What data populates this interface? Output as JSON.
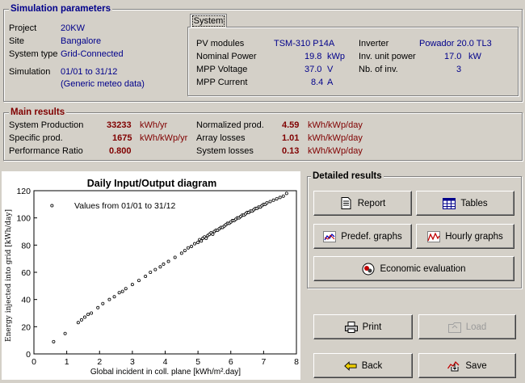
{
  "sim_params": {
    "title": "Simulation parameters",
    "project_label": "Project",
    "project_value": "20KW",
    "site_label": "Site",
    "site_value": "Bangalore",
    "system_type_label": "System type",
    "system_type_value": "Grid-Connected",
    "simulation_label": "Simulation",
    "simulation_value": "01/01 to 31/12",
    "meteo_note": "(Generic meteo data)",
    "tab_label": "System",
    "pv_modules_label": "PV modules",
    "pv_modules_value": "TSM-310 P14A",
    "nominal_power_label": "Nominal Power",
    "nominal_power_value": "19.8",
    "nominal_power_unit": "kWp",
    "mpp_voltage_label": "MPP Voltage",
    "mpp_voltage_value": "37.0",
    "mpp_voltage_unit": "V",
    "mpp_current_label": "MPP Current",
    "mpp_current_value": "8.4",
    "mpp_current_unit": "A",
    "inverter_label": "Inverter",
    "inverter_value": "Powador 20.0 TL3",
    "inv_unit_power_label": "Inv. unit power",
    "inv_unit_power_value": "17.0",
    "inv_unit_power_unit": "kW",
    "nb_inv_label": "Nb. of inv.",
    "nb_inv_value": "3"
  },
  "main_results": {
    "title": "Main results",
    "system_production_label": "System Production",
    "system_production_value": "33233",
    "system_production_unit": "kWh/yr",
    "specific_prod_label": "Specific prod.",
    "specific_prod_value": "1675",
    "specific_prod_unit": "kWh/kWp/yr",
    "performance_ratio_label": "Performance Ratio",
    "performance_ratio_value": "0.800",
    "normalized_prod_label": "Normalized prod.",
    "normalized_prod_value": "4.59",
    "normalized_prod_unit": "kWh/kWp/day",
    "array_losses_label": "Array losses",
    "array_losses_value": "1.01",
    "array_losses_unit": "kWh/kWp/day",
    "system_losses_label": "System losses",
    "system_losses_value": "0.13",
    "system_losses_unit": "kWh/kWp/day"
  },
  "detailed_results": {
    "title": "Detailed results",
    "report": "Report",
    "tables": "Tables",
    "predef_graphs": "Predef. graphs",
    "hourly_graphs": "Hourly graphs",
    "economic_evaluation": "Economic evaluation"
  },
  "actions": {
    "print": "Print",
    "load": "Load",
    "back": "Back",
    "save": "Save"
  },
  "icons": {
    "report": "report-icon",
    "tables": "table-icon",
    "predef": "line-graph-icon",
    "hourly": "hourly-graph-icon",
    "economic": "coin-icon",
    "print": "printer-icon",
    "load": "folder-icon",
    "back": "back-arrow-icon",
    "save": "save-icon"
  },
  "chart_data": {
    "type": "scatter",
    "title": "Daily Input/Output diagram",
    "annotation": "Values from 01/01 to 31/12",
    "xlabel": "Global incident in coll. plane [kWh/m².day]",
    "ylabel": "Energy injected into grid [kWh/day]",
    "xlim": [
      0,
      8
    ],
    "ylim": [
      0,
      120
    ],
    "xticks": [
      "0",
      "1",
      "2",
      "3",
      "4",
      "5",
      "6",
      "7",
      "8"
    ],
    "yticks": [
      "0",
      "20",
      "40",
      "60",
      "80",
      "100",
      "120"
    ],
    "points": [
      [
        0.6,
        9
      ],
      [
        0.95,
        15
      ],
      [
        1.35,
        23
      ],
      [
        1.45,
        25
      ],
      [
        1.55,
        27
      ],
      [
        1.65,
        29
      ],
      [
        1.75,
        30
      ],
      [
        1.95,
        34
      ],
      [
        2.1,
        37
      ],
      [
        2.3,
        40
      ],
      [
        2.45,
        42
      ],
      [
        2.6,
        45
      ],
      [
        2.7,
        46
      ],
      [
        2.8,
        48
      ],
      [
        3.0,
        51
      ],
      [
        3.2,
        54
      ],
      [
        3.4,
        57
      ],
      [
        3.55,
        60
      ],
      [
        3.7,
        62
      ],
      [
        3.85,
        64
      ],
      [
        3.95,
        66
      ],
      [
        4.1,
        68
      ],
      [
        4.3,
        71
      ],
      [
        4.5,
        74
      ],
      [
        4.6,
        76
      ],
      [
        4.7,
        78
      ],
      [
        4.8,
        79
      ],
      [
        4.9,
        81
      ],
      [
        5.0,
        82
      ],
      [
        5.05,
        84
      ],
      [
        5.1,
        83
      ],
      [
        5.15,
        85
      ],
      [
        5.2,
        86
      ],
      [
        5.25,
        85
      ],
      [
        5.3,
        87
      ],
      [
        5.35,
        88
      ],
      [
        5.4,
        89
      ],
      [
        5.45,
        88
      ],
      [
        5.5,
        90
      ],
      [
        5.55,
        91
      ],
      [
        5.6,
        91
      ],
      [
        5.65,
        92
      ],
      [
        5.7,
        93
      ],
      [
        5.75,
        93
      ],
      [
        5.8,
        94
      ],
      [
        5.85,
        95
      ],
      [
        5.9,
        96
      ],
      [
        5.95,
        96
      ],
      [
        6.0,
        97
      ],
      [
        6.05,
        98
      ],
      [
        6.1,
        98
      ],
      [
        6.15,
        99
      ],
      [
        6.2,
        100
      ],
      [
        6.25,
        100
      ],
      [
        6.3,
        101
      ],
      [
        6.35,
        102
      ],
      [
        6.4,
        102
      ],
      [
        6.45,
        103
      ],
      [
        6.5,
        104
      ],
      [
        6.55,
        104
      ],
      [
        6.6,
        105
      ],
      [
        6.65,
        105
      ],
      [
        6.7,
        106
      ],
      [
        6.75,
        107
      ],
      [
        6.8,
        107
      ],
      [
        6.85,
        108
      ],
      [
        6.9,
        108
      ],
      [
        6.95,
        109
      ],
      [
        7.0,
        110
      ],
      [
        7.05,
        110
      ],
      [
        7.1,
        111
      ],
      [
        7.2,
        112
      ],
      [
        7.3,
        113
      ],
      [
        7.4,
        114
      ],
      [
        7.5,
        115
      ],
      [
        7.6,
        116
      ],
      [
        7.7,
        118
      ],
      [
        0.55,
        109
      ]
    ]
  }
}
